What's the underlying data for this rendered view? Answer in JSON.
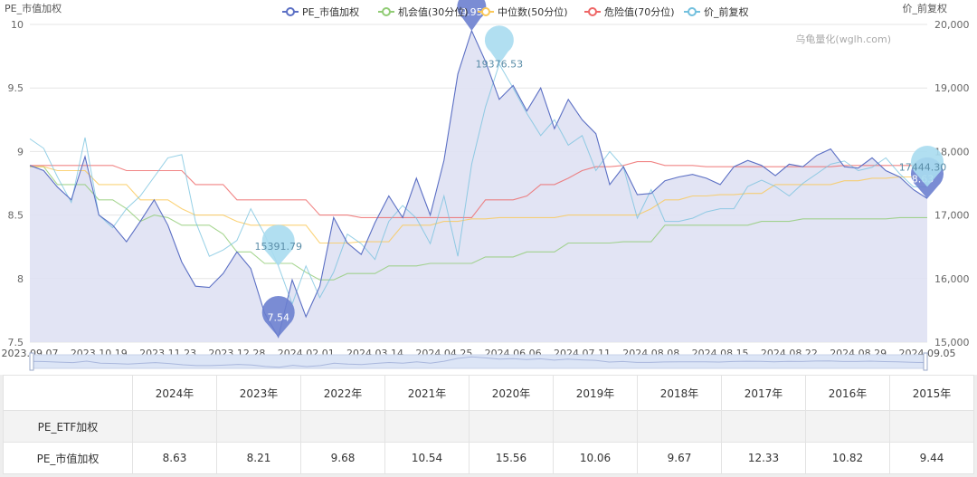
{
  "chart_data": {
    "type": "line",
    "y_left_label": "PE_市值加权",
    "y_right_label": "价_前复权",
    "watermark": "乌龟量化(wglh.com)",
    "ylim_left": [
      7.5,
      10
    ],
    "ylim_right": [
      15000,
      20000
    ],
    "y_left_ticks": [
      "7.5",
      "8",
      "8.5",
      "9",
      "9.5",
      "10"
    ],
    "y_right_ticks": [
      "15,000",
      "16,000",
      "17,000",
      "18,000",
      "19,000",
      "20,000"
    ],
    "x_tick_labels": [
      "2023.09.07",
      "2023.10.19",
      "2023.11.23",
      "2023.12.28",
      "2024.02.01",
      "2024.03.14",
      "2024.04.25",
      "2024.06.06",
      "2024.07.11",
      "2024.08.08",
      "2024.08.15",
      "2024.08.22",
      "2024.08.29",
      "2024.09.05"
    ],
    "grid": true,
    "legend_position": "top-center",
    "series": [
      {
        "name": "PE_市值加权",
        "color": "#5b6fc4",
        "axis": "left",
        "area": true,
        "values": [
          8.89,
          8.85,
          8.72,
          8.62,
          8.96,
          8.5,
          8.42,
          8.29,
          8.45,
          8.62,
          8.42,
          8.13,
          7.94,
          7.93,
          8.04,
          8.21,
          8.08,
          7.73,
          7.54,
          7.99,
          7.7,
          7.94,
          8.48,
          8.28,
          8.19,
          8.44,
          8.65,
          8.48,
          8.79,
          8.5,
          8.93,
          9.61,
          9.95,
          9.71,
          9.41,
          9.52,
          9.32,
          9.5,
          9.18,
          9.41,
          9.25,
          9.14,
          8.74,
          8.88,
          8.66,
          8.67,
          8.77,
          8.8,
          8.82,
          8.79,
          8.74,
          8.88,
          8.93,
          8.89,
          8.81,
          8.9,
          8.88,
          8.97,
          9.02,
          8.88,
          8.87,
          8.95,
          8.85,
          8.8,
          8.7,
          8.63
        ]
      },
      {
        "name": "机会值(30分位)",
        "color": "#91cc75",
        "axis": "left",
        "area": false,
        "values": [
          8.88,
          8.88,
          8.74,
          8.74,
          8.74,
          8.62,
          8.62,
          8.55,
          8.45,
          8.5,
          8.48,
          8.42,
          8.42,
          8.42,
          8.35,
          8.21,
          8.21,
          8.12,
          8.12,
          8.12,
          8.05,
          7.99,
          7.99,
          8.04,
          8.04,
          8.04,
          8.1,
          8.1,
          8.1,
          8.12,
          8.12,
          8.12,
          8.12,
          8.17,
          8.17,
          8.17,
          8.21,
          8.21,
          8.21,
          8.28,
          8.28,
          8.28,
          8.28,
          8.29,
          8.29,
          8.29,
          8.42,
          8.42,
          8.42,
          8.42,
          8.42,
          8.42,
          8.42,
          8.45,
          8.45,
          8.45,
          8.47,
          8.47,
          8.47,
          8.47,
          8.47,
          8.47,
          8.47,
          8.48,
          8.48,
          8.48
        ]
      },
      {
        "name": "中位数(50分位)",
        "color": "#fac858",
        "axis": "left",
        "area": false,
        "values": [
          8.88,
          8.88,
          8.85,
          8.85,
          8.85,
          8.74,
          8.74,
          8.74,
          8.62,
          8.62,
          8.62,
          8.55,
          8.5,
          8.5,
          8.5,
          8.45,
          8.42,
          8.42,
          8.42,
          8.42,
          8.42,
          8.28,
          8.28,
          8.28,
          8.29,
          8.29,
          8.29,
          8.42,
          8.42,
          8.42,
          8.45,
          8.45,
          8.47,
          8.47,
          8.48,
          8.48,
          8.48,
          8.48,
          8.48,
          8.5,
          8.5,
          8.5,
          8.5,
          8.5,
          8.5,
          8.55,
          8.62,
          8.62,
          8.65,
          8.65,
          8.66,
          8.66,
          8.67,
          8.67,
          8.74,
          8.74,
          8.74,
          8.74,
          8.74,
          8.77,
          8.77,
          8.79,
          8.79,
          8.8,
          8.8,
          8.8
        ]
      },
      {
        "name": "危险值(70分位)",
        "color": "#ee6666",
        "axis": "left",
        "area": false,
        "values": [
          8.89,
          8.89,
          8.89,
          8.89,
          8.89,
          8.89,
          8.89,
          8.85,
          8.85,
          8.85,
          8.85,
          8.85,
          8.74,
          8.74,
          8.74,
          8.62,
          8.62,
          8.62,
          8.62,
          8.62,
          8.62,
          8.5,
          8.5,
          8.5,
          8.48,
          8.48,
          8.48,
          8.48,
          8.48,
          8.48,
          8.48,
          8.48,
          8.48,
          8.62,
          8.62,
          8.62,
          8.65,
          8.74,
          8.74,
          8.79,
          8.85,
          8.88,
          8.88,
          8.89,
          8.92,
          8.92,
          8.89,
          8.89,
          8.89,
          8.88,
          8.88,
          8.88,
          8.88,
          8.88,
          8.88,
          8.88,
          8.88,
          8.88,
          8.88,
          8.89,
          8.89,
          8.89,
          8.89,
          8.89,
          8.89,
          8.89
        ]
      },
      {
        "name": "价_前复权",
        "color": "#73c0de",
        "axis": "right",
        "area": false,
        "values": [
          18200,
          18050,
          17600,
          17200,
          18220,
          17000,
          16800,
          17100,
          17300,
          17600,
          17900,
          17950,
          16900,
          16350,
          16450,
          16600,
          17100,
          16700,
          16200,
          15600,
          16200,
          15700,
          16100,
          16700,
          16550,
          16300,
          16900,
          17150,
          16950,
          16550,
          17300,
          16350,
          17800,
          18700,
          19377,
          19000,
          18600,
          18250,
          18500,
          18100,
          18250,
          17700,
          18000,
          17750,
          16950,
          17400,
          16900,
          16900,
          16950,
          17050,
          17100,
          17100,
          17450,
          17550,
          17450,
          17300,
          17500,
          17650,
          17800,
          17850,
          17700,
          17750,
          17900,
          17650,
          17444,
          17444
        ]
      }
    ],
    "markers": [
      {
        "type": "max",
        "text": "9.95",
        "index": 32,
        "series": "PE_市值加权"
      },
      {
        "type": "min",
        "text": "7.54",
        "index": 18,
        "series": "PE_市值加权"
      },
      {
        "type": "last",
        "text": "8.63",
        "index": 65,
        "series": "PE_市值加权"
      },
      {
        "type": "max",
        "text": "19376.53",
        "index": 34,
        "series": "价_前复权"
      },
      {
        "type": "min",
        "text": "15391.79",
        "index": 18,
        "series": "价_前复权"
      },
      {
        "type": "last",
        "text": "17444.30",
        "index": 65,
        "series": "价_前复权"
      }
    ]
  },
  "table": {
    "years": [
      "2024年",
      "2023年",
      "2022年",
      "2021年",
      "2020年",
      "2019年",
      "2018年",
      "2017年",
      "2016年",
      "2015年"
    ],
    "rows": [
      {
        "label": "PE_ETF加权",
        "values": [
          "",
          "",
          "",
          "",
          "",
          "",
          "",
          "",
          "",
          ""
        ]
      },
      {
        "label": "PE_市值加权",
        "values": [
          "8.63",
          "8.21",
          "9.68",
          "10.54",
          "15.56",
          "10.06",
          "9.67",
          "12.33",
          "10.82",
          "9.44"
        ]
      }
    ]
  },
  "colors": {
    "pe": "#5b6fc4",
    "price": "#73c0de",
    "grid": "#e6e6e6",
    "area": "#dfe1f3",
    "slider": "#dce5f6"
  }
}
